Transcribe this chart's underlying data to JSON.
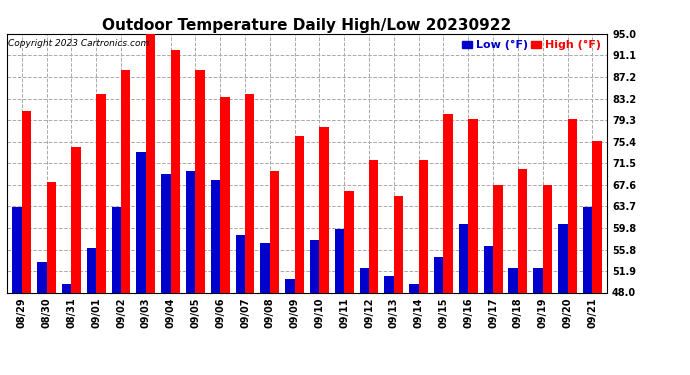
{
  "title": "Outdoor Temperature Daily High/Low 20230922",
  "copyright": "Copyright 2023 Cartronics.com",
  "legend_low_label": "Low (°F)",
  "legend_high_label": "High (°F)",
  "dates": [
    "08/29",
    "08/30",
    "08/31",
    "09/01",
    "09/02",
    "09/03",
    "09/04",
    "09/05",
    "09/06",
    "09/07",
    "09/08",
    "09/09",
    "09/10",
    "09/11",
    "09/12",
    "09/13",
    "09/14",
    "09/15",
    "09/16",
    "09/17",
    "09/18",
    "09/19",
    "09/20",
    "09/21"
  ],
  "highs": [
    81.0,
    68.0,
    74.5,
    84.0,
    88.5,
    95.5,
    92.0,
    88.5,
    83.5,
    84.0,
    70.0,
    76.5,
    78.0,
    66.5,
    72.0,
    65.5,
    72.0,
    80.5,
    79.5,
    67.5,
    70.5,
    67.5,
    79.5,
    75.5
  ],
  "lows": [
    63.5,
    53.5,
    49.5,
    56.0,
    63.5,
    73.5,
    69.5,
    70.0,
    68.5,
    58.5,
    57.0,
    50.5,
    57.5,
    59.5,
    52.5,
    51.0,
    49.5,
    54.5,
    60.5,
    56.5,
    52.5,
    52.5,
    60.5,
    63.5
  ],
  "yticks": [
    48.0,
    51.9,
    55.8,
    59.8,
    63.7,
    67.6,
    71.5,
    75.4,
    79.3,
    83.2,
    87.2,
    91.1,
    95.0
  ],
  "ymin": 48.0,
  "ymax": 95.0,
  "bar_color_high": "#FF0000",
  "bar_color_low": "#0000CC",
  "title_fontsize": 11,
  "tick_fontsize": 7,
  "copyright_fontsize": 6.5,
  "legend_fontsize": 8,
  "bg_color": "#FFFFFF",
  "grid_color": "#AAAAAA",
  "bar_width": 0.38
}
